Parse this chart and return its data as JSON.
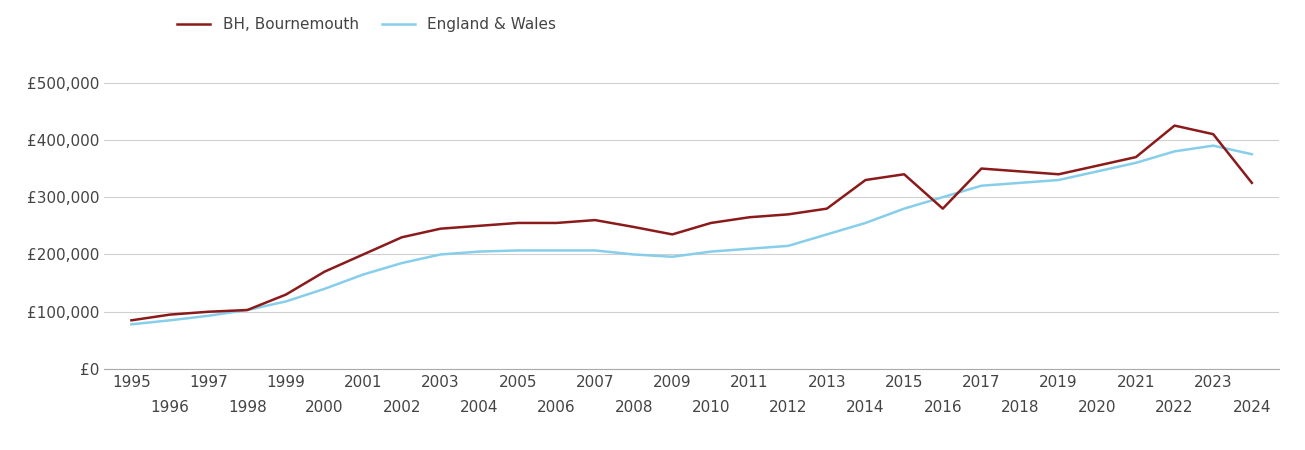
{
  "bh_years": [
    1995,
    1996,
    1997,
    1998,
    1999,
    2000,
    2001,
    2002,
    2003,
    2004,
    2005,
    2006,
    2007,
    2008,
    2009,
    2010,
    2011,
    2012,
    2013,
    2014,
    2015,
    2016,
    2017,
    2018,
    2019,
    2020,
    2021,
    2022,
    2023,
    2024
  ],
  "bh_values": [
    85000,
    95000,
    100000,
    103000,
    130000,
    170000,
    200000,
    230000,
    245000,
    250000,
    255000,
    255000,
    260000,
    248000,
    235000,
    255000,
    265000,
    270000,
    280000,
    330000,
    340000,
    280000,
    350000,
    345000,
    340000,
    355000,
    370000,
    425000,
    410000,
    325000
  ],
  "ew_years": [
    1995,
    1996,
    1997,
    1998,
    1999,
    2000,
    2001,
    2002,
    2003,
    2004,
    2005,
    2006,
    2007,
    2008,
    2009,
    2010,
    2011,
    2012,
    2013,
    2014,
    2015,
    2016,
    2017,
    2018,
    2019,
    2020,
    2021,
    2022,
    2023,
    2024
  ],
  "ew_values": [
    78000,
    85000,
    93000,
    103000,
    118000,
    140000,
    165000,
    185000,
    200000,
    205000,
    207000,
    207000,
    207000,
    200000,
    196000,
    205000,
    210000,
    215000,
    235000,
    255000,
    280000,
    300000,
    320000,
    325000,
    330000,
    345000,
    360000,
    380000,
    390000,
    375000
  ],
  "bh_color": "#8B1A1A",
  "ew_color": "#87CEEB",
  "bh_label": "BH, Bournemouth",
  "ew_label": "England & Wales",
  "ylim": [
    0,
    550000
  ],
  "yticks": [
    0,
    100000,
    200000,
    300000,
    400000,
    500000
  ],
  "ytick_labels": [
    "£0",
    "£100,000",
    "£200,000",
    "£300,000",
    "£400,000",
    "£500,000"
  ],
  "grid_color": "#d0d0d0",
  "bg_color": "#ffffff",
  "line_width": 1.8,
  "font_color": "#444444",
  "font_size": 11
}
